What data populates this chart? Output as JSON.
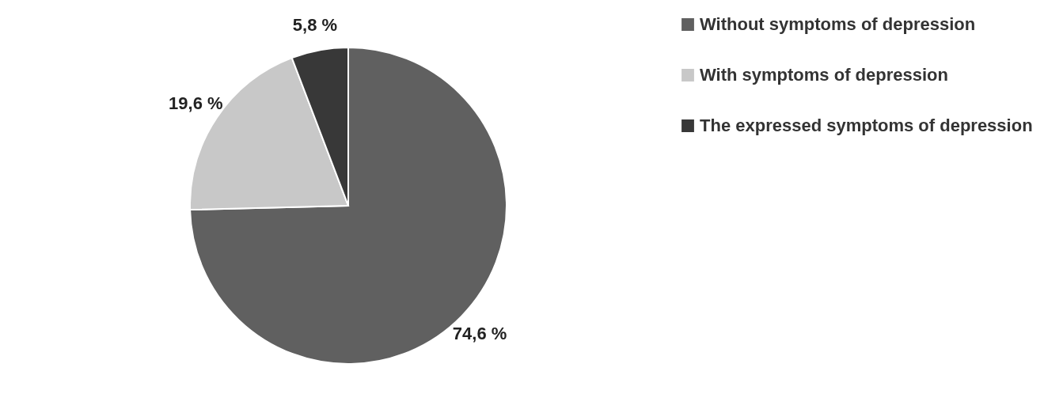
{
  "chart_data": {
    "type": "pie",
    "categories": [
      "Without symptoms of depression",
      "With symptoms of depression",
      "The expressed symptoms of depression"
    ],
    "values": [
      74.6,
      19.6,
      5.8
    ],
    "colors": [
      "#606060",
      "#c8c8c8",
      "#383838"
    ],
    "value_labels": [
      "74,6 %",
      "19,6 %",
      "5,8  %"
    ],
    "legend": "right"
  }
}
